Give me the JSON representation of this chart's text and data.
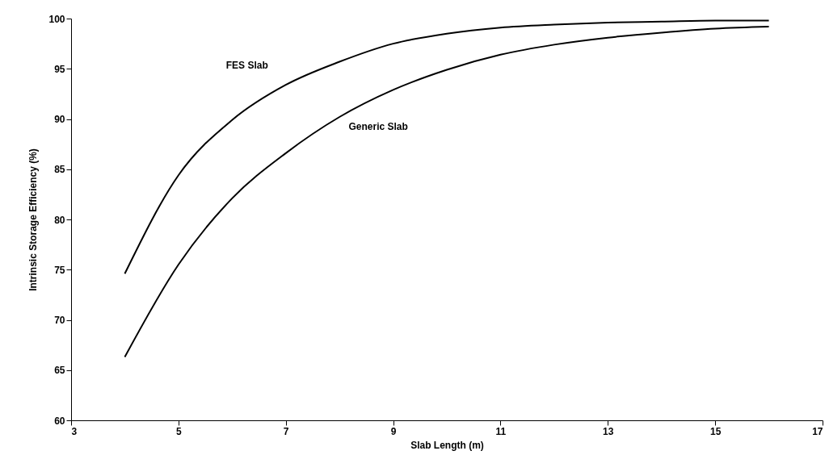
{
  "chart_data": {
    "type": "line",
    "xlabel": "Slab Length (m)",
    "ylabel": "Intrinsic Storage Efficiency (%)",
    "x": [
      4,
      5,
      6,
      7,
      8,
      9,
      10,
      11,
      12,
      13,
      14,
      15,
      16
    ],
    "series": [
      {
        "name": "FES Slab",
        "color": "#000000",
        "values": [
          74.6,
          84.4,
          89.9,
          93.4,
          95.7,
          97.5,
          98.5,
          99.1,
          99.4,
          99.6,
          99.7,
          99.8,
          99.8
        ]
      },
      {
        "name": "Generic Slab",
        "color": "#000000",
        "values": [
          66.3,
          75.5,
          82.1,
          86.6,
          90.2,
          92.9,
          94.9,
          96.4,
          97.4,
          98.1,
          98.6,
          99.0,
          99.2
        ]
      }
    ],
    "xlim": [
      3,
      17
    ],
    "xticks": [
      3,
      5,
      7,
      9,
      11,
      13,
      15,
      17
    ],
    "ylim": [
      60,
      100
    ],
    "yticks": [
      60,
      65,
      70,
      75,
      80,
      85,
      90,
      95,
      100
    ],
    "line_style": "solid"
  }
}
